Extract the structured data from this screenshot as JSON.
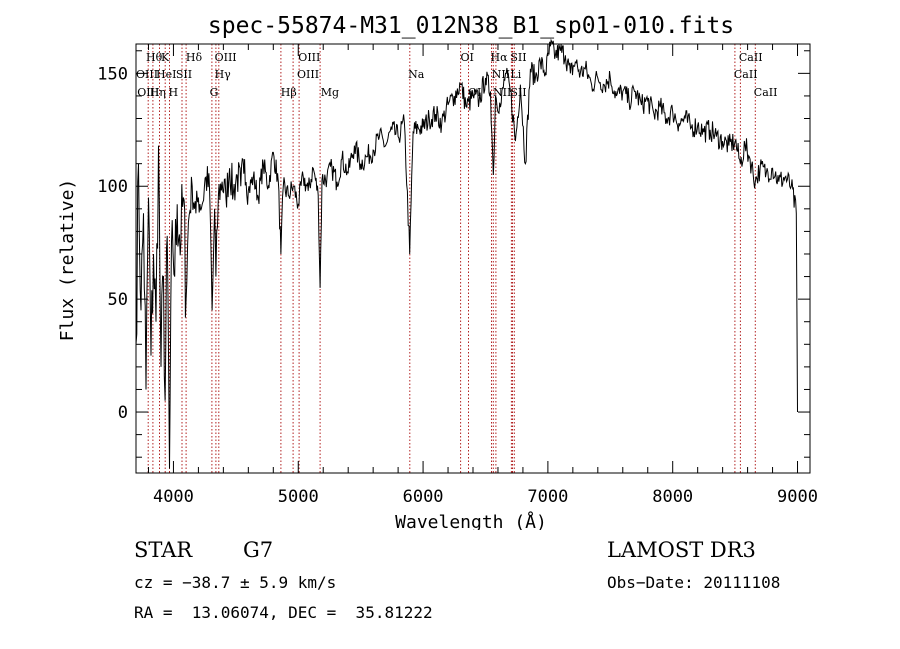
{
  "chart_data": {
    "type": "line",
    "title": "spec-55874-M31_012N38_B1_sp01-010.fits",
    "xlabel": "Wavelength (Å)",
    "ylabel": "Flux (relative)",
    "xlim": [
      3700,
      9100
    ],
    "ylim": [
      -27,
      163
    ],
    "xticks": [
      4000,
      5000,
      6000,
      7000,
      8000,
      9000
    ],
    "yticks": [
      0,
      50,
      100,
      150
    ],
    "xtick_labels": [
      "4000",
      "5000",
      "6000",
      "7000",
      "8000",
      "9000"
    ],
    "ytick_labels": [
      "0",
      "50",
      "100",
      "150"
    ],
    "x_minor_step": 200,
    "y_minor_step": 10,
    "series": [
      {
        "name": "flux",
        "x": [
          3700,
          3720,
          3740,
          3760,
          3780,
          3800,
          3820,
          3840,
          3860,
          3880,
          3900,
          3920,
          3933,
          3950,
          3968,
          3990,
          4010,
          4030,
          4060,
          4080,
          4101,
          4120,
          4150,
          4180,
          4200,
          4230,
          4260,
          4290,
          4310,
          4330,
          4340,
          4360,
          4390,
          4420,
          4450,
          4480,
          4510,
          4540,
          4570,
          4600,
          4640,
          4680,
          4720,
          4760,
          4800,
          4840,
          4861,
          4880,
          4920,
          4960,
          5000,
          5040,
          5080,
          5120,
          5160,
          5175,
          5190,
          5230,
          5270,
          5310,
          5350,
          5400,
          5450,
          5500,
          5550,
          5600,
          5650,
          5700,
          5750,
          5800,
          5850,
          5893,
          5920,
          5960,
          6000,
          6050,
          6100,
          6150,
          6200,
          6250,
          6300,
          6350,
          6400,
          6450,
          6500,
          6540,
          6563,
          6580,
          6620,
          6660,
          6700,
          6740,
          6780,
          6820,
          6860,
          6900,
          6940,
          6980,
          7020,
          7060,
          7100,
          7140,
          7180,
          7220,
          7260,
          7300,
          7350,
          7400,
          7450,
          7500,
          7550,
          7600,
          7650,
          7700,
          7750,
          7800,
          7850,
          7900,
          7950,
          8000,
          8050,
          8100,
          8150,
          8200,
          8250,
          8300,
          8350,
          8400,
          8450,
          8500,
          8542,
          8580,
          8620,
          8662,
          8700,
          8750,
          8800,
          8850,
          8900,
          8950,
          8990,
          9000
        ],
        "values": [
          30,
          110,
          45,
          88,
          10,
          95,
          25,
          70,
          40,
          118,
          20,
          60,
          5,
          78,
          -25,
          85,
          60,
          92,
          75,
          95,
          50,
          84,
          100,
          88,
          95,
          92,
          104,
          98,
          45,
          90,
          60,
          96,
          102,
          95,
          108,
          97,
          105,
          100,
          112,
          98,
          104,
          95,
          110,
          100,
          115,
          102,
          70,
          100,
          96,
          100,
          92,
          104,
          98,
          108,
          96,
          55,
          103,
          104,
          108,
          102,
          112,
          106,
          118,
          110,
          113,
          116,
          122,
          118,
          125,
          122,
          128,
          70,
          124,
          126,
          126,
          130,
          132,
          128,
          136,
          140,
          145,
          135,
          140,
          138,
          148,
          142,
          105,
          140,
          135,
          150,
          142,
          120,
          145,
          110,
          152,
          148,
          155,
          150,
          162,
          158,
          160,
          158,
          150,
          155,
          150,
          152,
          145,
          148,
          145,
          148,
          140,
          142,
          138,
          142,
          136,
          138,
          132,
          135,
          130,
          133,
          128,
          130,
          126,
          127,
          124,
          125,
          122,
          120,
          118,
          120,
          110,
          118,
          112,
          102,
          108,
          106,
          108,
          102,
          104,
          100,
          88,
          0
        ]
      }
    ],
    "lines": [
      {
        "name": "CaII K",
        "wavelength": 3933.7
      },
      {
        "name": "CaII H",
        "wavelength": 3968.5
      },
      {
        "name": "Hη",
        "wavelength": 3835.4
      },
      {
        "name": "Hθ",
        "wavelength": 3797.9
      },
      {
        "name": "HeI",
        "wavelength": 3888.6
      },
      {
        "name": "SII",
        "wavelength": 4068.6
      },
      {
        "name": "Hδ",
        "wavelength": 4101.7
      },
      {
        "name": "G",
        "wavelength": 4307.9
      },
      {
        "name": "Hγ",
        "wavelength": 4340.5
      },
      {
        "name": "OIII",
        "wavelength": 4363.2
      },
      {
        "name": "Hβ",
        "wavelength": 4861.3
      },
      {
        "name": "OIII",
        "wavelength": 4958.9
      },
      {
        "name": "OIII",
        "wavelength": 5006.8
      },
      {
        "name": "Mg",
        "wavelength": 5175.3
      },
      {
        "name": "Na",
        "wavelength": 5894
      },
      {
        "name": "OI",
        "wavelength": 6300.3
      },
      {
        "name": "OI",
        "wavelength": 6363.8
      },
      {
        "name": "NII",
        "wavelength": 6548.1
      },
      {
        "name": "Hα",
        "wavelength": 6562.8
      },
      {
        "name": "NII",
        "wavelength": 6583.5
      },
      {
        "name": "Li",
        "wavelength": 6707.8
      },
      {
        "name": "SII",
        "wavelength": 6716.4
      },
      {
        "name": "SII",
        "wavelength": 6730.8
      },
      {
        "name": "CaII",
        "wavelength": 8498
      },
      {
        "name": "CaII",
        "wavelength": 8542
      },
      {
        "name": "CaII",
        "wavelength": 8662
      }
    ],
    "line_labels": [
      {
        "text": "Hθ",
        "wavelength": 3780,
        "row": 0
      },
      {
        "text": "K",
        "wavelength": 3900,
        "row": 0
      },
      {
        "text": "Hδ",
        "wavelength": 4100,
        "row": 0
      },
      {
        "text": "OIII",
        "wavelength": 4330,
        "row": 0
      },
      {
        "text": "OIII",
        "wavelength": 5000,
        "row": 0
      },
      {
        "text": "OI",
        "wavelength": 6300,
        "row": 0
      },
      {
        "text": "Hα",
        "wavelength": 6540,
        "row": 0
      },
      {
        "text": "SII",
        "wavelength": 6700,
        "row": 0
      },
      {
        "text": "CaII",
        "wavelength": 8530,
        "row": 0
      },
      {
        "text": "OIII",
        "wavelength": 3700,
        "row": 1
      },
      {
        "text": "HeI",
        "wavelength": 3860,
        "row": 1
      },
      {
        "text": "SII",
        "wavelength": 4020,
        "row": 1
      },
      {
        "text": "Hγ",
        "wavelength": 4330,
        "row": 1
      },
      {
        "text": "OIII",
        "wavelength": 4990,
        "row": 1
      },
      {
        "text": "Na",
        "wavelength": 5880,
        "row": 1
      },
      {
        "text": "NII",
        "wavelength": 6550,
        "row": 1
      },
      {
        "text": "Li",
        "wavelength": 6700,
        "row": 1
      },
      {
        "text": "CaII",
        "wavelength": 8490,
        "row": 1
      },
      {
        "text": "OIII",
        "wavelength": 3710,
        "row": 2
      },
      {
        "text": "Hη",
        "wavelength": 3810,
        "row": 2
      },
      {
        "text": "H",
        "wavelength": 3960,
        "row": 2
      },
      {
        "text": "G",
        "wavelength": 4290,
        "row": 2
      },
      {
        "text": "Hβ",
        "wavelength": 4860,
        "row": 2
      },
      {
        "text": "Mg",
        "wavelength": 5180,
        "row": 2
      },
      {
        "text": "OI",
        "wavelength": 6360,
        "row": 2
      },
      {
        "text": "NII",
        "wavelength": 6560,
        "row": 2
      },
      {
        "text": "SII",
        "wavelength": 6700,
        "row": 2
      },
      {
        "text": "CaII",
        "wavelength": 8650,
        "row": 2
      }
    ]
  },
  "info": {
    "object_class": "STAR",
    "subclass": "G7",
    "survey": "LAMOST DR3",
    "redshift_line": "cz = −38.7 ± 5.9 km/s",
    "obs_date": "Obs−Date: 20111108",
    "coords": "RA =  13.06074, DEC =  35.81222"
  },
  "colors": {
    "spectrum": "#000000",
    "emission_lines": "#b22222",
    "axes": "#000000"
  }
}
